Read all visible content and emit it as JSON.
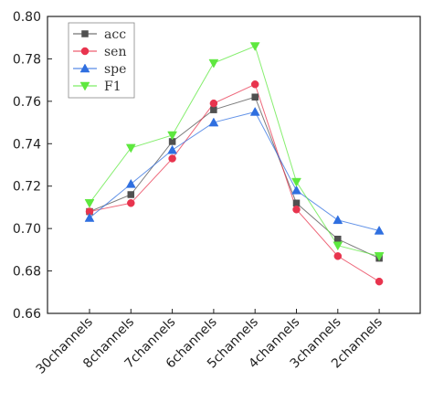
{
  "chart_data": {
    "type": "line",
    "title": "",
    "xlabel": "",
    "ylabel": "",
    "categories": [
      "30channels",
      "8channels",
      "7channels",
      "6channels",
      "5channels",
      "4channels",
      "3channels",
      "2channels"
    ],
    "ylim": [
      0.66,
      0.8
    ],
    "yticks": [
      "0.66",
      "0.68",
      "0.70",
      "0.72",
      "0.74",
      "0.76",
      "0.78",
      "0.80"
    ],
    "grid": false,
    "legend_position": "top-left",
    "series": [
      {
        "name": "acc",
        "marker": "square",
        "color": "#505050",
        "values": [
          0.708,
          0.716,
          0.741,
          0.756,
          0.762,
          0.712,
          0.695,
          0.686
        ]
      },
      {
        "name": "sen",
        "marker": "circle",
        "color": "#e8344e",
        "values": [
          0.708,
          0.712,
          0.733,
          0.759,
          0.768,
          0.709,
          0.687,
          0.675
        ]
      },
      {
        "name": "spe",
        "marker": "triangle-up",
        "color": "#2f6fe0",
        "values": [
          0.705,
          0.721,
          0.737,
          0.75,
          0.755,
          0.718,
          0.704,
          0.699
        ]
      },
      {
        "name": "F1",
        "marker": "triangle-down",
        "color": "#5ee83f",
        "values": [
          0.712,
          0.738,
          0.744,
          0.778,
          0.786,
          0.722,
          0.692,
          0.687
        ]
      }
    ]
  }
}
